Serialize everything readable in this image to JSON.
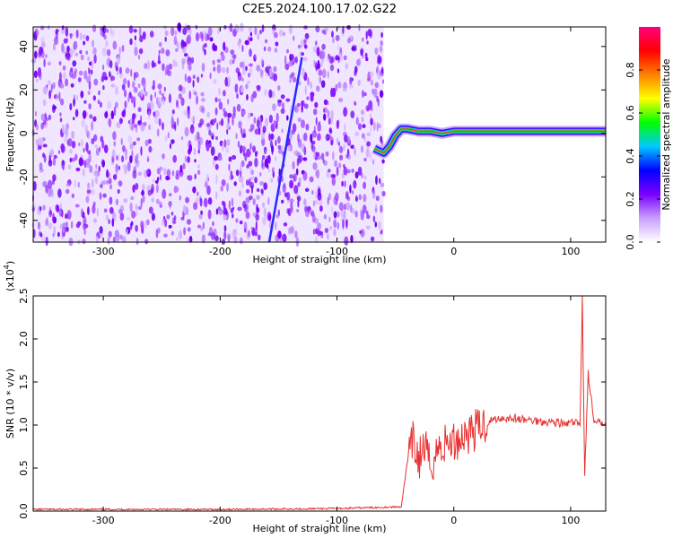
{
  "title": "C2E5.2024.100.17.02.G22",
  "chart_data": [
    {
      "type": "heatmap",
      "xlabel": "Height of straight line (km)",
      "ylabel": "Frequency (Hz)",
      "xlim": [
        -360,
        130
      ],
      "ylim": [
        -50,
        49
      ],
      "xticks": [
        -300,
        -200,
        -100,
        0,
        100
      ],
      "yticks": [
        -40,
        -20,
        0,
        20,
        40
      ],
      "noise_region_x": [
        -360,
        -60
      ],
      "diagonal_trace": {
        "x": [
          -158,
          -130
        ],
        "y": [
          -50,
          35
        ]
      },
      "signal_trace": {
        "x": [
          -68,
          -60,
          -55,
          -50,
          -45,
          -40,
          -30,
          -20,
          -10,
          0,
          20,
          40,
          60,
          80,
          95,
          105,
          110,
          115,
          130
        ],
        "y": [
          -7,
          -9,
          -6,
          -1,
          2,
          2,
          1,
          1,
          0,
          1,
          1,
          1,
          1,
          1,
          1,
          1,
          1,
          1,
          1
        ]
      },
      "colorbar": {
        "label": "Normalized spectral amplitude",
        "ticks": [
          "0.0",
          "0.2",
          "0.4",
          "0.6",
          "0.8"
        ],
        "range": [
          0,
          1
        ],
        "colors": [
          "#ffffff",
          "#c8a0ff",
          "#7a00ff",
          "#0000ff",
          "#00c8ff",
          "#00ff00",
          "#ffff00",
          "#ff8000",
          "#ff0000",
          "#ff0080"
        ]
      }
    },
    {
      "type": "line",
      "xlabel": "Height of straight line (km)",
      "ylabel": "SNR (10 * v/v)",
      "multiplier_label": "(x10",
      "multiplier_exponent": "4",
      "xlim": [
        -360,
        130
      ],
      "ylim": [
        0,
        2.5
      ],
      "xticks": [
        -300,
        -200,
        -100,
        0,
        100
      ],
      "yticks": [
        "0.0",
        "0.5",
        "1.0",
        "1.5",
        "2.0",
        "2.5"
      ],
      "color": "#e83030",
      "series": [
        {
          "x": [
            -360,
            -300,
            -200,
            -100,
            -45,
            -40,
            -35,
            -30,
            -25,
            -20,
            -15,
            -10,
            -5,
            0,
            5,
            10,
            20,
            30,
            40,
            50,
            60,
            70,
            80,
            90,
            95,
            100,
            105,
            108,
            110,
            112,
            115,
            120,
            130
          ],
          "y": [
            0.02,
            0.02,
            0.02,
            0.03,
            0.05,
            0.55,
            0.8,
            0.6,
            0.75,
            0.5,
            0.7,
            0.75,
            0.8,
            0.8,
            0.85,
            0.9,
            0.95,
            1.05,
            1.08,
            1.08,
            1.06,
            1.05,
            1.04,
            1.03,
            1.0,
            1.03,
            1.02,
            1.0,
            2.5,
            0.4,
            1.6,
            1.02,
            1.03
          ]
        }
      ]
    }
  ]
}
